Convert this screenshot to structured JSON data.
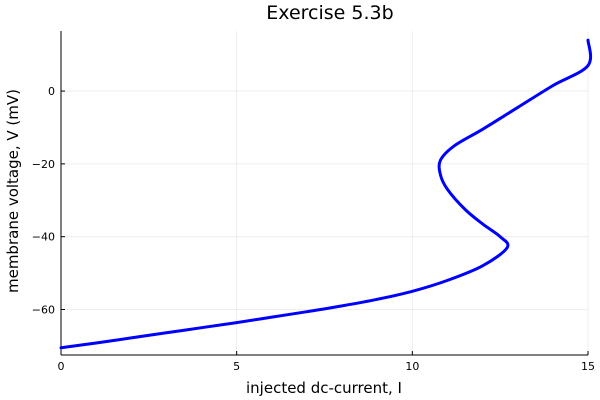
{
  "chart_data": {
    "type": "line",
    "title": "Exercise 5.3b",
    "xlabel": "injected dc-current, I",
    "ylabel": "membrane voltage, V (mV)",
    "xlim": [
      0,
      15
    ],
    "ylim": [
      -72.5,
      16.5
    ],
    "xticks": [
      0,
      5,
      10,
      15
    ],
    "yticks": [
      -60,
      -40,
      -20,
      0
    ],
    "xtick_labels": [
      "0",
      "5",
      "10",
      "15"
    ],
    "ytick_labels": [
      "−60",
      "−40",
      "−20",
      "0"
    ],
    "grid": true,
    "legend": "none",
    "series": [
      {
        "color": "#0000ff",
        "points": [
          [
            0.0,
            -70.5
          ],
          [
            1.0,
            -69.2
          ],
          [
            2.0,
            -67.8
          ],
          [
            3.0,
            -66.4
          ],
          [
            4.0,
            -65.0
          ],
          [
            5.0,
            -63.6
          ],
          [
            6.0,
            -62.1
          ],
          [
            7.0,
            -60.6
          ],
          [
            8.0,
            -59.0
          ],
          [
            9.0,
            -57.2
          ],
          [
            10.0,
            -55.0
          ],
          [
            11.0,
            -52.0
          ],
          [
            12.0,
            -48.0
          ],
          [
            12.7,
            -43.0
          ],
          [
            12.5,
            -40.0
          ],
          [
            12.0,
            -36.5
          ],
          [
            11.5,
            -32.5
          ],
          [
            11.0,
            -27.0
          ],
          [
            10.8,
            -23.0
          ],
          [
            10.8,
            -19.0
          ],
          [
            11.2,
            -15.0
          ],
          [
            12.0,
            -10.5
          ],
          [
            13.0,
            -4.5
          ],
          [
            14.0,
            1.5
          ],
          [
            15.0,
            7.0
          ],
          [
            15.0,
            14.0
          ]
        ]
      }
    ]
  }
}
